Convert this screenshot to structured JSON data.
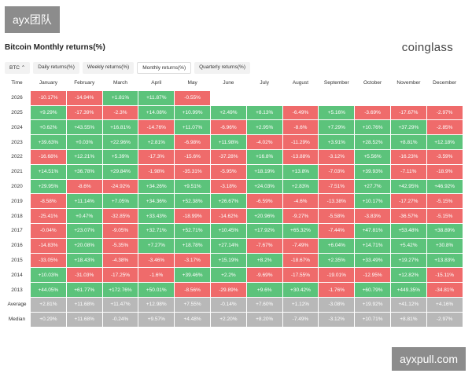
{
  "watermark_top": "ayx团队",
  "watermark_bottom": "ayxpull.com",
  "header": {
    "title": "Bitcoin Monthly returns(%)",
    "brand": "coinglass"
  },
  "toolbar": {
    "asset": "BTC",
    "tabs": [
      "Daily returns(%)",
      "Weekly returns(%)",
      "Monthly returns(%)",
      "Quarterly returns(%)"
    ],
    "active_tab": 2
  },
  "table": {
    "columns": [
      "Time",
      "January",
      "February",
      "March",
      "April",
      "May",
      "June",
      "July",
      "August",
      "September",
      "October",
      "November",
      "December"
    ],
    "rows": [
      {
        "label": "2026",
        "cells": [
          "-10.17%",
          "-14.94%",
          "+1.81%",
          "+11.87%",
          "-0.55%"
        ]
      },
      {
        "label": "2025",
        "cells": [
          "+9.29%",
          "-17.39%",
          "-2.3%",
          "+14.08%",
          "+10.99%",
          "+2.49%",
          "+8.13%",
          "-6.49%",
          "+5.16%",
          "-3.69%",
          "-17.67%",
          "-2.97%"
        ]
      },
      {
        "label": "2024",
        "cells": [
          "+0.62%",
          "+43.55%",
          "+16.81%",
          "-14.76%",
          "+11.07%",
          "-6.96%",
          "+2.95%",
          "-8.6%",
          "+7.29%",
          "+10.76%",
          "+37.29%",
          "-2.85%"
        ]
      },
      {
        "label": "2023",
        "cells": [
          "+39.63%",
          "+0.03%",
          "+22.96%",
          "+2.81%",
          "-6.98%",
          "+11.98%",
          "-4.02%",
          "-11.29%",
          "+3.91%",
          "+28.52%",
          "+8.81%",
          "+12.18%"
        ]
      },
      {
        "label": "2022",
        "cells": [
          "-16.68%",
          "+12.21%",
          "+5.39%",
          "-17.3%",
          "-15.6%",
          "-37.28%",
          "+16.8%",
          "-13.88%",
          "-3.12%",
          "+5.56%",
          "-16.23%",
          "-3.59%"
        ]
      },
      {
        "label": "2021",
        "cells": [
          "+14.51%",
          "+36.78%",
          "+29.84%",
          "-1.98%",
          "-35.31%",
          "-5.95%",
          "+18.19%",
          "+13.8%",
          "-7.03%",
          "+39.93%",
          "-7.11%",
          "-18.9%"
        ]
      },
      {
        "label": "2020",
        "cells": [
          "+29.95%",
          "-8.6%",
          "-24.92%",
          "+34.26%",
          "+9.51%",
          "-3.18%",
          "+24.03%",
          "+2.83%",
          "-7.51%",
          "+27.7%",
          "+42.95%",
          "+46.92%"
        ]
      },
      {
        "label": "2019",
        "cells": [
          "-8.58%",
          "+11.14%",
          "+7.05%",
          "+34.36%",
          "+52.38%",
          "+26.67%",
          "-6.59%",
          "-4.6%",
          "-13.38%",
          "+10.17%",
          "-17.27%",
          "-5.15%"
        ]
      },
      {
        "label": "2018",
        "cells": [
          "-25.41%",
          "+0.47%",
          "-32.85%",
          "+33.43%",
          "-18.99%",
          "-14.62%",
          "+20.96%",
          "-9.27%",
          "-5.58%",
          "-3.83%",
          "-36.57%",
          "-5.15%"
        ]
      },
      {
        "label": "2017",
        "cells": [
          "-0.04%",
          "+23.07%",
          "-9.05%",
          "+32.71%",
          "+52.71%",
          "+10.45%",
          "+17.92%",
          "+65.32%",
          "-7.44%",
          "+47.81%",
          "+53.48%",
          "+38.89%"
        ]
      },
      {
        "label": "2016",
        "cells": [
          "-14.83%",
          "+20.08%",
          "-5.35%",
          "+7.27%",
          "+18.78%",
          "+27.14%",
          "-7.67%",
          "-7.49%",
          "+6.04%",
          "+14.71%",
          "+5.42%",
          "+30.8%"
        ]
      },
      {
        "label": "2015",
        "cells": [
          "-33.05%",
          "+18.43%",
          "-4.38%",
          "-3.46%",
          "-3.17%",
          "+15.19%",
          "+8.2%",
          "-18.67%",
          "+2.35%",
          "+33.49%",
          "+19.27%",
          "+13.83%"
        ]
      },
      {
        "label": "2014",
        "cells": [
          "+10.03%",
          "-31.03%",
          "-17.25%",
          "-1.6%",
          "+39.46%",
          "+2.2%",
          "-9.69%",
          "-17.55%",
          "-19.01%",
          "-12.95%",
          "+12.82%",
          "-15.11%"
        ]
      },
      {
        "label": "2013",
        "cells": [
          "+44.05%",
          "+61.77%",
          "+172.76%",
          "+50.01%",
          "-8.56%",
          "-29.89%",
          "+9.6%",
          "+30.42%",
          "-1.76%",
          "+60.79%",
          "+449.35%",
          "-34.81%"
        ]
      },
      {
        "label": "Average",
        "summary": true,
        "cells": [
          "+2.81%",
          "+11.68%",
          "+11.47%",
          "+12.98%",
          "+7.55%",
          "-0.14%",
          "+7.60%",
          "+1.12%",
          "-3.08%",
          "+19.92%",
          "+41.12%",
          "+4.16%"
        ]
      },
      {
        "label": "Median",
        "summary": true,
        "cells": [
          "+0.29%",
          "+11.68%",
          "-0.24%",
          "+9.57%",
          "+4.48%",
          "+2.20%",
          "+8.20%",
          "-7.49%",
          "-3.12%",
          "+10.71%",
          "+8.81%",
          "-2.97%"
        ]
      }
    ]
  }
}
